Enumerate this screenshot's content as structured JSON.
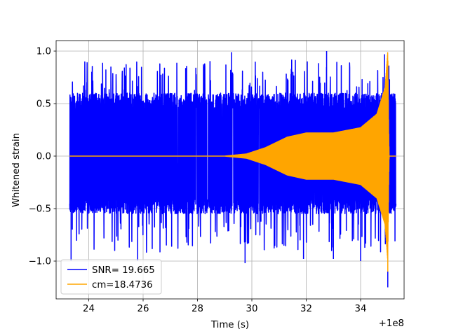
{
  "chart_data": {
    "type": "line",
    "title": "",
    "xlabel": "Time (s)",
    "ylabel": "Whitened strain",
    "x_offset_label": "+1e8",
    "xlim": [
      22.8,
      35.6
    ],
    "ylim": [
      -1.36,
      1.1
    ],
    "xticks": [
      24,
      26,
      28,
      30,
      32,
      34
    ],
    "xtick_labels": [
      "24",
      "26",
      "28",
      "30",
      "32",
      "34"
    ],
    "yticks": [
      -1.0,
      -0.5,
      0.0,
      0.5,
      1.0
    ],
    "ytick_labels": [
      "−1.0",
      "−0.5",
      "0.0",
      "0.5",
      "1.0"
    ],
    "grid": true,
    "legend_position": "lower left",
    "series": [
      {
        "name": "SNR= 19.665",
        "color": "#0000ff",
        "kind": "noise",
        "x_range": [
          23.3,
          35.3
        ],
        "typical_amplitude": [
          -0.55,
          0.6
        ],
        "peaks": [
          [
            23.35,
            -1.0
          ],
          [
            25.8,
            -1.0
          ],
          [
            29.75,
            -1.02
          ],
          [
            32.75,
            1.0
          ],
          [
            34.0,
            -1.0
          ],
          [
            34.88,
            0.97
          ],
          [
            35.0,
            -1.25
          ],
          [
            29.25,
            0.99
          ],
          [
            31.9,
            -0.98
          ],
          [
            33.0,
            -0.98
          ]
        ]
      },
      {
        "name": "cm=18.4736",
        "color": "#ffa500",
        "kind": "chirp",
        "envelope": [
          [
            23.3,
            0.0
          ],
          [
            29.0,
            0.0
          ],
          [
            29.8,
            0.02
          ],
          [
            30.5,
            0.08
          ],
          [
            31.3,
            0.18
          ],
          [
            32.0,
            0.22
          ],
          [
            33.0,
            0.22
          ],
          [
            34.0,
            0.27
          ],
          [
            34.6,
            0.4
          ],
          [
            34.9,
            0.65
          ],
          [
            35.0,
            1.0
          ],
          [
            35.03,
            0.3
          ],
          [
            35.05,
            0.0
          ],
          [
            35.3,
            0.0
          ]
        ],
        "min_value": -1.1
      }
    ]
  }
}
